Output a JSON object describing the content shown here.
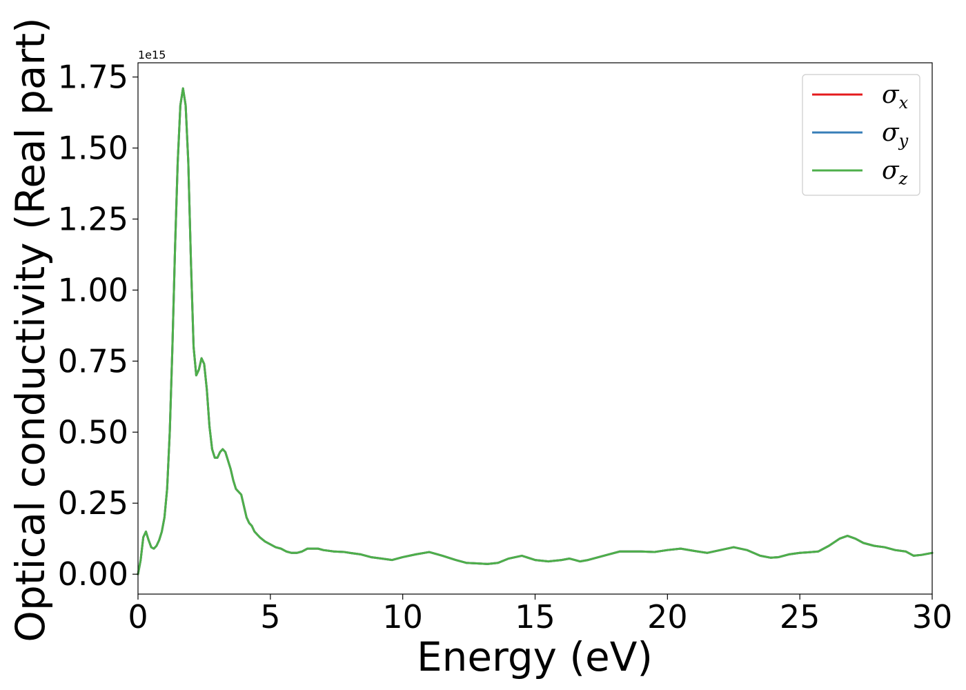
{
  "chart_data": {
    "type": "line",
    "title": "",
    "xlabel": "Energy (eV)",
    "ylabel": "Optical conductivity (Real part)",
    "y_offset_label": "1e15",
    "y_scale_factor": 1000000000000000.0,
    "xlim": [
      0,
      30
    ],
    "ylim": [
      -0.07,
      1.8
    ],
    "x_ticks": [
      0,
      5,
      10,
      15,
      20,
      25,
      30
    ],
    "x_tick_labels": [
      "0",
      "5",
      "10",
      "15",
      "20",
      "25",
      "30"
    ],
    "y_ticks": [
      0,
      0.25,
      0.5,
      0.75,
      1.0,
      1.25,
      1.5,
      1.75
    ],
    "y_tick_labels": [
      "0.00",
      "0.25",
      "0.50",
      "0.75",
      "1.00",
      "1.25",
      "1.50",
      "1.75"
    ],
    "grid": false,
    "legend_position": "top-right",
    "x": [
      0,
      0.1,
      0.2,
      0.3,
      0.4,
      0.5,
      0.6,
      0.7,
      0.8,
      0.9,
      1.0,
      1.1,
      1.2,
      1.3,
      1.4,
      1.5,
      1.6,
      1.7,
      1.8,
      1.9,
      2.0,
      2.1,
      2.2,
      2.3,
      2.4,
      2.5,
      2.6,
      2.7,
      2.8,
      2.9,
      3.0,
      3.1,
      3.2,
      3.3,
      3.4,
      3.5,
      3.6,
      3.7,
      3.8,
      3.9,
      4.0,
      4.1,
      4.2,
      4.3,
      4.4,
      4.6,
      4.8,
      5.0,
      5.2,
      5.4,
      5.6,
      5.8,
      6.0,
      6.2,
      6.4,
      6.6,
      6.8,
      7.0,
      7.4,
      7.8,
      8.0,
      8.4,
      8.8,
      9.2,
      9.6,
      10.0,
      10.5,
      11.0,
      11.5,
      12.0,
      12.4,
      12.8,
      13.2,
      13.6,
      14.0,
      14.5,
      15.0,
      15.5,
      16.0,
      16.3,
      16.5,
      16.7,
      17.0,
      17.4,
      17.8,
      18.2,
      18.6,
      19.0,
      19.5,
      20.0,
      20.5,
      21.0,
      21.5,
      22.0,
      22.5,
      23.0,
      23.5,
      23.9,
      24.2,
      24.6,
      25.0,
      25.3,
      25.7,
      26.1,
      26.5,
      26.8,
      27.1,
      27.4,
      27.8,
      28.2,
      28.6,
      29.0,
      29.3,
      29.6,
      30.0
    ],
    "series": [
      {
        "name": "σx",
        "color": "#e41a1c",
        "values": [
          0.0,
          0.05,
          0.13,
          0.15,
          0.12,
          0.095,
          0.09,
          0.1,
          0.12,
          0.15,
          0.2,
          0.3,
          0.5,
          0.8,
          1.15,
          1.45,
          1.65,
          1.71,
          1.65,
          1.45,
          1.1,
          0.8,
          0.7,
          0.72,
          0.76,
          0.74,
          0.65,
          0.52,
          0.44,
          0.41,
          0.41,
          0.43,
          0.44,
          0.43,
          0.4,
          0.37,
          0.33,
          0.3,
          0.29,
          0.28,
          0.24,
          0.2,
          0.18,
          0.17,
          0.15,
          0.13,
          0.115,
          0.105,
          0.095,
          0.09,
          0.08,
          0.075,
          0.075,
          0.08,
          0.09,
          0.09,
          0.09,
          0.085,
          0.08,
          0.078,
          0.075,
          0.07,
          0.06,
          0.055,
          0.05,
          0.06,
          0.07,
          0.078,
          0.065,
          0.05,
          0.04,
          0.038,
          0.036,
          0.04,
          0.055,
          0.065,
          0.05,
          0.045,
          0.05,
          0.055,
          0.05,
          0.045,
          0.05,
          0.06,
          0.07,
          0.08,
          0.08,
          0.08,
          0.078,
          0.085,
          0.09,
          0.082,
          0.075,
          0.085,
          0.095,
          0.085,
          0.065,
          0.058,
          0.06,
          0.07,
          0.075,
          0.077,
          0.08,
          0.1,
          0.125,
          0.135,
          0.125,
          0.11,
          0.1,
          0.095,
          0.085,
          0.08,
          0.065,
          0.068,
          0.075
        ]
      },
      {
        "name": "σy",
        "color": "#377eb8",
        "values": [
          0.0,
          0.05,
          0.13,
          0.15,
          0.12,
          0.095,
          0.09,
          0.1,
          0.12,
          0.15,
          0.2,
          0.3,
          0.5,
          0.8,
          1.15,
          1.45,
          1.65,
          1.71,
          1.65,
          1.45,
          1.1,
          0.8,
          0.7,
          0.72,
          0.76,
          0.74,
          0.65,
          0.52,
          0.44,
          0.41,
          0.41,
          0.43,
          0.44,
          0.43,
          0.4,
          0.37,
          0.33,
          0.3,
          0.29,
          0.28,
          0.24,
          0.2,
          0.18,
          0.17,
          0.15,
          0.13,
          0.115,
          0.105,
          0.095,
          0.09,
          0.08,
          0.075,
          0.075,
          0.08,
          0.09,
          0.09,
          0.09,
          0.085,
          0.08,
          0.078,
          0.075,
          0.07,
          0.06,
          0.055,
          0.05,
          0.06,
          0.07,
          0.078,
          0.065,
          0.05,
          0.04,
          0.038,
          0.036,
          0.04,
          0.055,
          0.065,
          0.05,
          0.045,
          0.05,
          0.055,
          0.05,
          0.045,
          0.05,
          0.06,
          0.07,
          0.08,
          0.08,
          0.08,
          0.078,
          0.085,
          0.09,
          0.082,
          0.075,
          0.085,
          0.095,
          0.085,
          0.065,
          0.058,
          0.06,
          0.07,
          0.075,
          0.077,
          0.08,
          0.1,
          0.125,
          0.135,
          0.125,
          0.11,
          0.1,
          0.095,
          0.085,
          0.08,
          0.065,
          0.068,
          0.075
        ]
      },
      {
        "name": "σz",
        "color": "#4daf4a",
        "values": [
          0.0,
          0.05,
          0.13,
          0.15,
          0.12,
          0.095,
          0.09,
          0.1,
          0.12,
          0.15,
          0.2,
          0.3,
          0.5,
          0.8,
          1.15,
          1.45,
          1.65,
          1.71,
          1.65,
          1.45,
          1.1,
          0.8,
          0.7,
          0.72,
          0.76,
          0.74,
          0.65,
          0.52,
          0.44,
          0.41,
          0.41,
          0.43,
          0.44,
          0.43,
          0.4,
          0.37,
          0.33,
          0.3,
          0.29,
          0.28,
          0.24,
          0.2,
          0.18,
          0.17,
          0.15,
          0.13,
          0.115,
          0.105,
          0.095,
          0.09,
          0.08,
          0.075,
          0.075,
          0.08,
          0.09,
          0.09,
          0.09,
          0.085,
          0.08,
          0.078,
          0.075,
          0.07,
          0.06,
          0.055,
          0.05,
          0.06,
          0.07,
          0.078,
          0.065,
          0.05,
          0.04,
          0.038,
          0.036,
          0.04,
          0.055,
          0.065,
          0.05,
          0.045,
          0.05,
          0.055,
          0.05,
          0.045,
          0.05,
          0.06,
          0.07,
          0.08,
          0.08,
          0.08,
          0.078,
          0.085,
          0.09,
          0.082,
          0.075,
          0.085,
          0.095,
          0.085,
          0.065,
          0.058,
          0.06,
          0.07,
          0.075,
          0.077,
          0.08,
          0.1,
          0.125,
          0.135,
          0.125,
          0.11,
          0.1,
          0.095,
          0.085,
          0.08,
          0.065,
          0.068,
          0.075
        ]
      }
    ],
    "legend": [
      {
        "symbol": "σ",
        "subscript": "x",
        "color": "#e41a1c"
      },
      {
        "symbol": "σ",
        "subscript": "y",
        "color": "#377eb8"
      },
      {
        "symbol": "σ",
        "subscript": "z",
        "color": "#4daf4a"
      }
    ]
  }
}
